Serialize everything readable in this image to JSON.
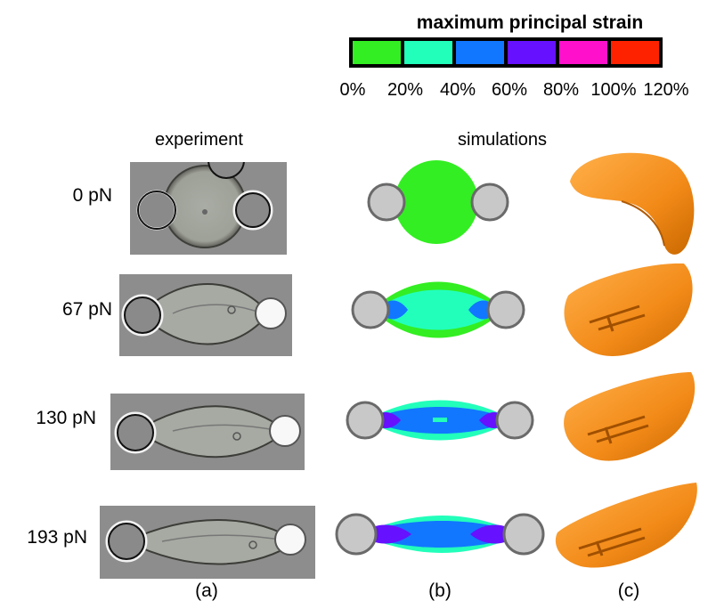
{
  "legend": {
    "title": "maximum principal strain",
    "ticks": [
      "0%",
      "20%",
      "40%",
      "60%",
      "80%",
      "100%",
      "120%"
    ],
    "colors": [
      "#33ee22",
      "#22ffbb",
      "#1177ff",
      "#6611ff",
      "#ff11cc",
      "#ff2200"
    ]
  },
  "headers": {
    "experiment": "experiment",
    "simulations": "simulations"
  },
  "forces": [
    "0 pN",
    "67 pN",
    "130 pN",
    "193 pN"
  ],
  "panels": [
    "(a)",
    "(b)",
    "(c)"
  ],
  "colors": {
    "bead": "#c8c8c8",
    "bead_outline": "#6a6a6a",
    "cell_3d": "#f28a18",
    "photo_bg": "#8d8d8d"
  }
}
